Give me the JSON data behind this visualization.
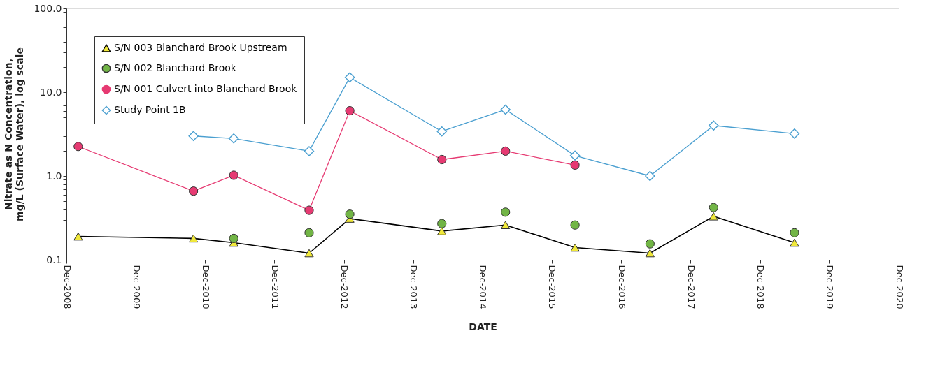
{
  "chart_data": {
    "type": "line",
    "xlabel": "DATE",
    "ylabel": "Nitrate as N Concentration, mg/L (Surface Water), log scale",
    "x": [
      "2009-02",
      "2010-10",
      "2011-05",
      "2012-06",
      "2013-01",
      "2014-05",
      "2015-04",
      "2016-04",
      "2017-05",
      "2018-04",
      "2019-06"
    ],
    "series": [
      {
        "name": "S/N 003 Blanchard Brook Upstream",
        "marker": "triangle",
        "color": "#000000",
        "colors": [
          "#f0e83a",
          "#f0e83a",
          "#f0e83a",
          "#f0e83a",
          "#f0e83a",
          "#f0e83a",
          "#f0e83a",
          "#f0e83a",
          "#f0e83a",
          "#f0e83a",
          "#f0e83a"
        ],
        "values": [
          0.19,
          0.18,
          0.16,
          0.12,
          0.31,
          0.22,
          0.26,
          0.14,
          0.12,
          0.33,
          0.16
        ]
      },
      {
        "name": "S/N 002 Blanchard Brook",
        "type": "scatter",
        "marker": "circle",
        "color": "#72b546",
        "values": [
          null,
          null,
          0.18,
          0.21,
          0.35,
          0.27,
          0.37,
          0.26,
          0.155,
          0.42,
          0.21
        ]
      },
      {
        "name": "S/N 001 Culvert into Blanchard Brook",
        "marker": "circle",
        "color": "#e63a72",
        "values": [
          2.25,
          0.66,
          1.02,
          0.39,
          6.0,
          1.57,
          1.98,
          1.35,
          null,
          null,
          null
        ]
      },
      {
        "name": "Study Point 1B",
        "marker": "diamond",
        "color": "#4a9fd0",
        "values": [
          null,
          3.0,
          2.8,
          1.98,
          15,
          3.4,
          6.2,
          1.75,
          1.0,
          4.0,
          3.2
        ]
      }
    ],
    "log": "y",
    "ylim": [
      0.1,
      100
    ],
    "yticks": [
      {
        "value": 0.1,
        "label": "0.1"
      },
      {
        "value": 0.2,
        "label": null
      },
      {
        "value": 0.3,
        "label": null
      },
      {
        "value": 0.4,
        "label": null
      },
      {
        "value": 0.5,
        "label": null
      },
      {
        "value": 0.6,
        "label": null
      },
      {
        "value": 0.7,
        "label": null
      },
      {
        "value": 0.8,
        "label": null
      },
      {
        "value": 0.9,
        "label": null
      },
      {
        "value": 1,
        "label": "1.0"
      },
      {
        "value": 2,
        "label": null
      },
      {
        "value": 3,
        "label": null
      },
      {
        "value": 4,
        "label": null
      },
      {
        "value": 5,
        "label": null
      },
      {
        "value": 6,
        "label": null
      },
      {
        "value": 7,
        "label": null
      },
      {
        "value": 8,
        "label": null
      },
      {
        "value": 9,
        "label": null
      },
      {
        "value": 10,
        "label": "10.0"
      },
      {
        "value": 20,
        "label": null
      },
      {
        "value": 30,
        "label": null
      },
      {
        "value": 40,
        "label": null
      },
      {
        "value": 50,
        "label": null
      },
      {
        "value": 60,
        "label": null
      },
      {
        "value": 70,
        "label": null
      },
      {
        "value": 80,
        "label": null
      },
      {
        "value": 90,
        "label": null
      },
      {
        "value": 100,
        "label": "100.0"
      }
    ],
    "xlim": [
      "2008-12",
      "2020-12"
    ],
    "xticks": [
      {
        "value": "2008-12",
        "label": "Dec-2008"
      },
      {
        "value": "2009-12",
        "label": "Dec-2009"
      },
      {
        "value": "2010-12",
        "label": "Dec-2010"
      },
      {
        "value": "2011-12",
        "label": "Dec-2011"
      },
      {
        "value": "2012-12",
        "label": "Dec-2012"
      },
      {
        "value": "2013-12",
        "label": "Dec-2013"
      },
      {
        "value": "2014-12",
        "label": "Dec-2014"
      },
      {
        "value": "2015-12",
        "label": "Dec-2015"
      },
      {
        "value": "2016-12",
        "label": "Dec-2016"
      },
      {
        "value": "2017-12",
        "label": "Dec-2017"
      },
      {
        "value": "2018-12",
        "label": "Dec-2018"
      },
      {
        "value": "2019-12",
        "label": "Dec-2019"
      },
      {
        "value": "2020-12",
        "label": "Dec-2020"
      }
    ],
    "grid": false,
    "legend": "top left",
    "line_style": "solid"
  }
}
